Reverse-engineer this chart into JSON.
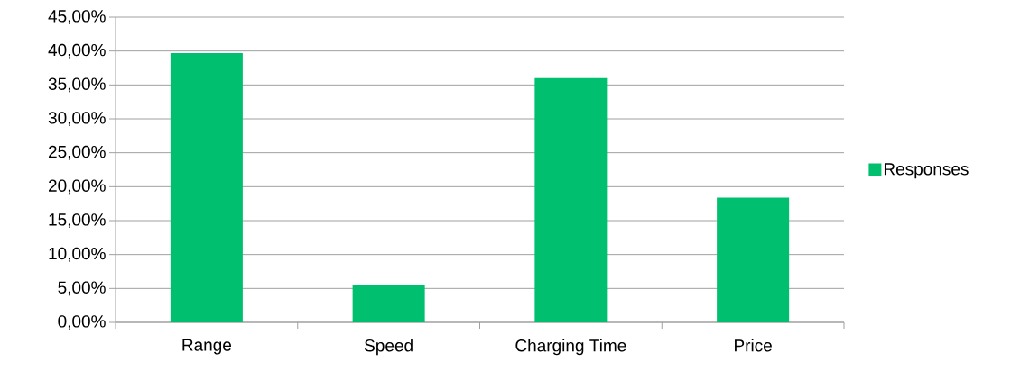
{
  "chart_data": {
    "type": "bar",
    "categories": [
      "Range",
      "Speed",
      "Charging Time",
      "Price"
    ],
    "series": [
      {
        "name": "Responses",
        "color": "#00bf6f",
        "values": [
          39.7,
          5.5,
          36.0,
          18.4
        ]
      }
    ],
    "ylim": [
      0,
      45
    ],
    "yticks": [
      {
        "value": 0,
        "label": "0,00%"
      },
      {
        "value": 5,
        "label": "5,00%"
      },
      {
        "value": 10,
        "label": "10,00%"
      },
      {
        "value": 15,
        "label": "15,00%"
      },
      {
        "value": 20,
        "label": "20,00%"
      },
      {
        "value": 25,
        "label": "25,00%"
      },
      {
        "value": 30,
        "label": "30,00%"
      },
      {
        "value": 35,
        "label": "35,00%"
      },
      {
        "value": 40,
        "label": "40,00%"
      },
      {
        "value": 45,
        "label": "45,00%"
      }
    ],
    "grid": "y",
    "legend": "right"
  }
}
